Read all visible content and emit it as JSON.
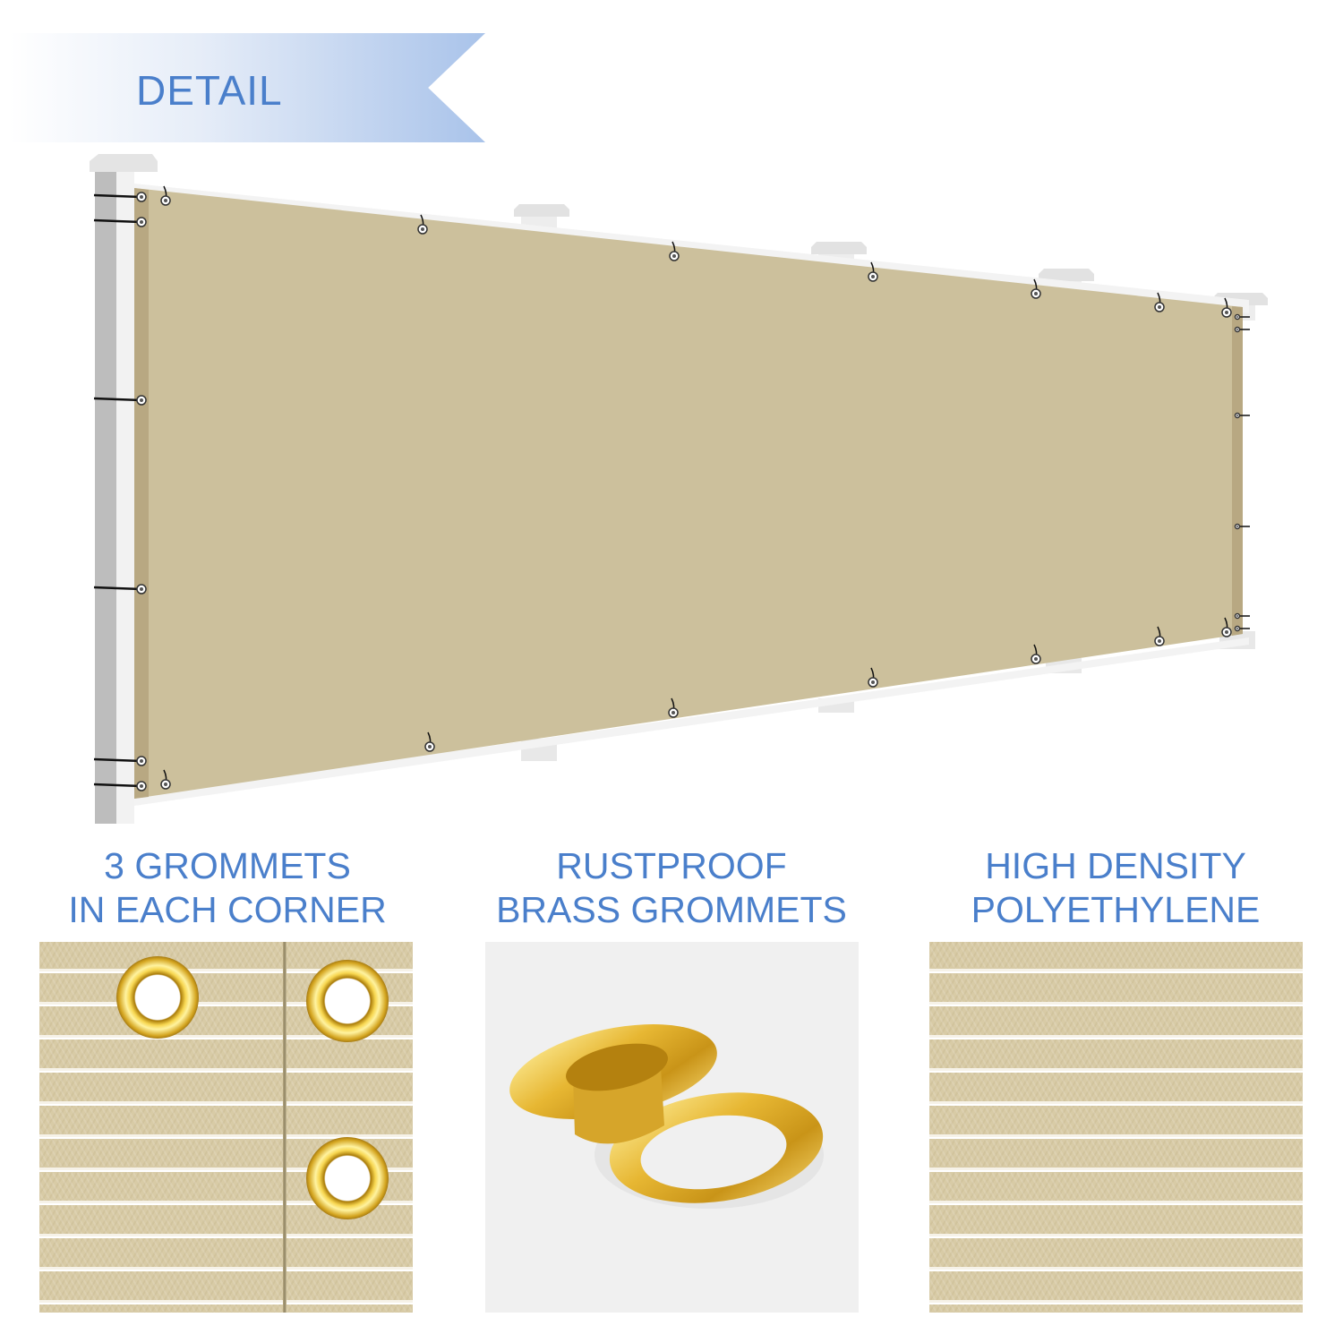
{
  "banner": {
    "label": "DETAIL",
    "color": "#4a7fcb"
  },
  "product": {
    "fabric_color": "#ccc09c",
    "post_color": "#e6e6e6"
  },
  "features": [
    {
      "line1": "3 GROMMETS",
      "line2": "IN EACH CORNER",
      "image": "fabric-with-corner-grommets"
    },
    {
      "line1": "RUSTPROOF",
      "line2": "BRASS GROMMETS",
      "image": "brass-grommet-pair"
    },
    {
      "line1": "HIGH DENSITY",
      "line2": "POLYETHYLENE",
      "image": "fabric-texture-closeup"
    }
  ]
}
